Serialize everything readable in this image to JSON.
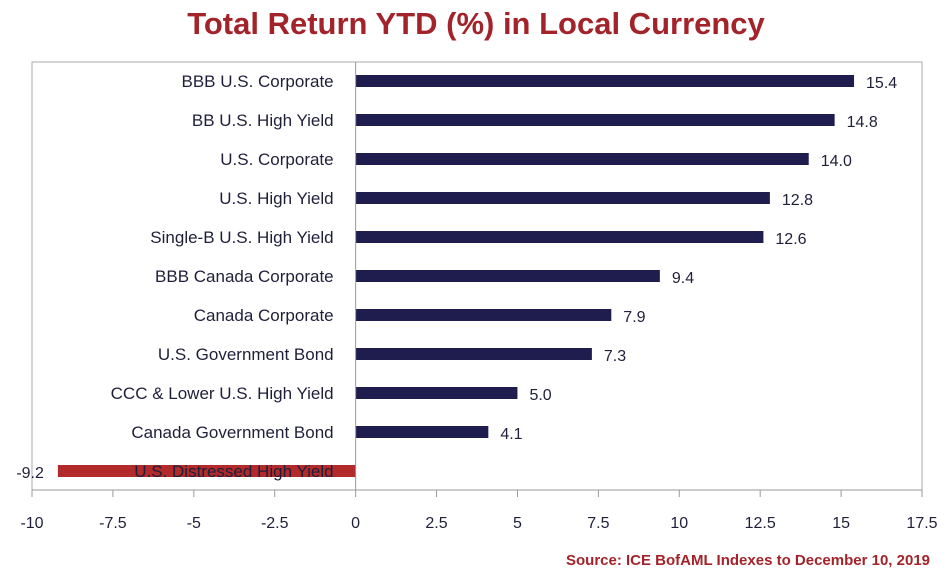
{
  "chart_data": {
    "type": "bar",
    "orientation": "horizontal",
    "title": "Total Return YTD (%) in Local Currency",
    "source": "Source: ICE BofAML Indexes to December 10, 2019",
    "categories": [
      "BBB U.S. Corporate",
      "BB U.S. High Yield",
      "U.S. Corporate",
      "U.S. High Yield",
      "Single-B U.S. High Yield",
      "BBB Canada Corporate",
      "Canada Corporate",
      "U.S. Government Bond",
      "CCC & Lower U.S. High Yield",
      "Canada Government Bond",
      "U.S. Distressed High Yield"
    ],
    "values": [
      15.4,
      14.8,
      14.0,
      12.8,
      12.6,
      9.4,
      7.9,
      7.3,
      5.0,
      4.1,
      -9.2
    ],
    "value_labels": [
      "15.4",
      "14.8",
      "14.0",
      "12.8",
      "12.6",
      "9.4",
      "7.9",
      "7.3",
      "5.0",
      "4.1",
      "-9.2"
    ],
    "xlim": [
      -10,
      17.5
    ],
    "xticks": [
      -10,
      -7.5,
      -5,
      -2.5,
      0,
      2.5,
      5,
      7.5,
      10,
      12.5,
      15,
      17.5
    ],
    "xtick_labels": [
      "-10",
      "-7.5",
      "-5",
      "-2.5",
      "0",
      "2.5",
      "5",
      "7.5",
      "10",
      "12.5",
      "15",
      "17.5"
    ],
    "xlabel": "",
    "ylabel": "",
    "grid": false,
    "legend": "none",
    "colors": {
      "positive": "#1f1d4e",
      "negative": "#b22a2a",
      "title": "#a3232a",
      "text": "#1f1f3a",
      "axis": "#999999"
    }
  }
}
